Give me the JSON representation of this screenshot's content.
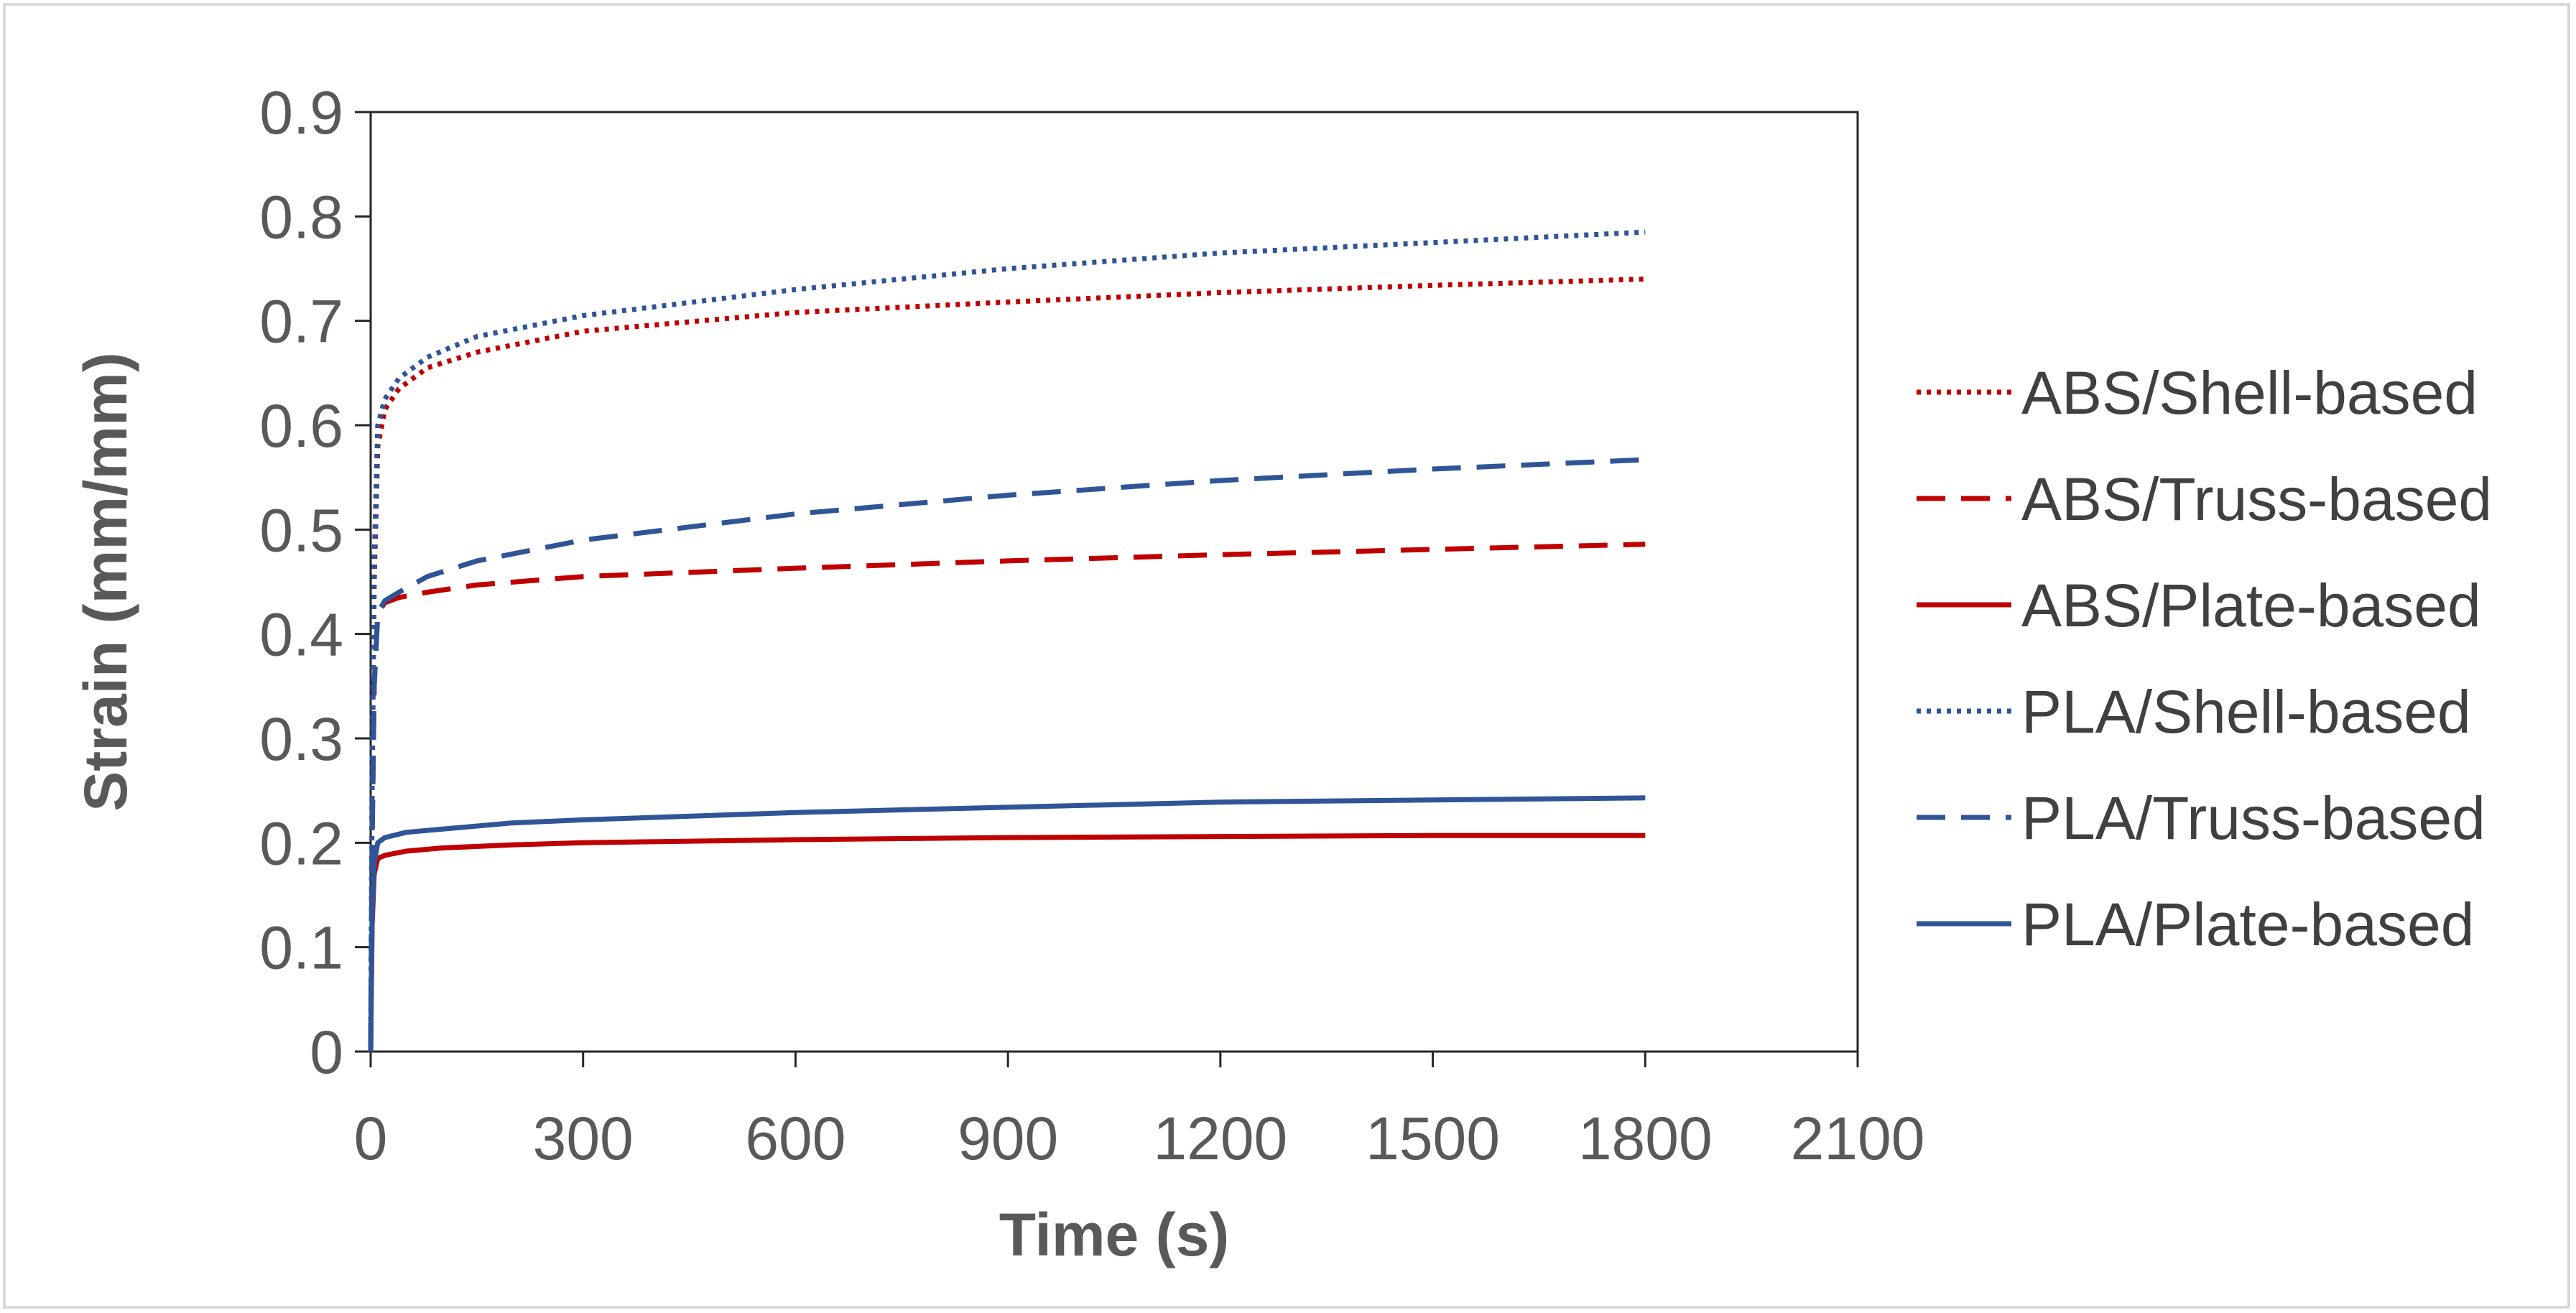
{
  "chart_data": {
    "type": "line",
    "title": "",
    "xlabel": "Time (s)",
    "ylabel": "Strain (mm/mm)",
    "xlim": [
      0,
      2100
    ],
    "ylim": [
      0,
      0.9
    ],
    "xticks": [
      0,
      300,
      600,
      900,
      1200,
      1500,
      1800,
      2100
    ],
    "xtick_labels": [
      "0",
      "300",
      "600",
      "900",
      "1200",
      "1500",
      "1800",
      "2100"
    ],
    "yticks": [
      0,
      0.1,
      0.2,
      0.3,
      0.4,
      0.5,
      0.6,
      0.7,
      0.8,
      0.9
    ],
    "ytick_labels": [
      "0",
      "0.1",
      "0.2",
      "0.3",
      "0.4",
      "0.5",
      "0.6",
      "0.7",
      "0.8",
      "0.9"
    ],
    "grid": false,
    "legend_position": "right",
    "series": [
      {
        "name": "ABS/Shell-based",
        "color": "#c00000",
        "style": "dotted",
        "x": [
          0,
          2,
          5,
          10,
          20,
          40,
          80,
          150,
          300,
          600,
          900,
          1200,
          1500,
          1800
        ],
        "y": [
          0,
          0.25,
          0.45,
          0.58,
          0.615,
          0.635,
          0.655,
          0.67,
          0.69,
          0.708,
          0.718,
          0.727,
          0.734,
          0.74
        ]
      },
      {
        "name": "ABS/Truss-based",
        "color": "#c00000",
        "style": "dashed",
        "x": [
          0,
          2,
          5,
          10,
          20,
          40,
          80,
          150,
          300,
          600,
          900,
          1200,
          1500,
          1800
        ],
        "y": [
          0,
          0.2,
          0.35,
          0.42,
          0.43,
          0.435,
          0.44,
          0.447,
          0.455,
          0.463,
          0.47,
          0.476,
          0.481,
          0.486
        ]
      },
      {
        "name": "ABS/Plate-based",
        "color": "#c00000",
        "style": "solid",
        "x": [
          0,
          2,
          5,
          10,
          20,
          50,
          100,
          200,
          300,
          600,
          900,
          1200,
          1500,
          1800
        ],
        "y": [
          0,
          0.12,
          0.17,
          0.185,
          0.188,
          0.192,
          0.195,
          0.198,
          0.2,
          0.203,
          0.205,
          0.206,
          0.207,
          0.207
        ]
      },
      {
        "name": "PLA/Shell-based",
        "color": "#2f5597",
        "style": "dotted",
        "x": [
          0,
          2,
          5,
          10,
          20,
          40,
          80,
          150,
          300,
          600,
          900,
          1200,
          1500,
          1800
        ],
        "y": [
          0,
          0.27,
          0.47,
          0.6,
          0.625,
          0.645,
          0.665,
          0.685,
          0.705,
          0.73,
          0.75,
          0.765,
          0.775,
          0.785
        ]
      },
      {
        "name": "PLA/Truss-based",
        "color": "#2f5597",
        "style": "dashed",
        "x": [
          0,
          2,
          5,
          10,
          20,
          40,
          80,
          150,
          300,
          600,
          900,
          1200,
          1500,
          1800
        ],
        "y": [
          0,
          0.2,
          0.35,
          0.42,
          0.432,
          0.44,
          0.455,
          0.47,
          0.49,
          0.515,
          0.533,
          0.547,
          0.558,
          0.567
        ]
      },
      {
        "name": "PLA/Plate-based",
        "color": "#2f5597",
        "style": "solid",
        "x": [
          0,
          2,
          5,
          10,
          20,
          50,
          100,
          200,
          300,
          600,
          900,
          1200,
          1500,
          1800
        ],
        "y": [
          0,
          0.13,
          0.18,
          0.2,
          0.205,
          0.21,
          0.213,
          0.219,
          0.222,
          0.229,
          0.234,
          0.239,
          0.241,
          0.243
        ]
      }
    ]
  }
}
